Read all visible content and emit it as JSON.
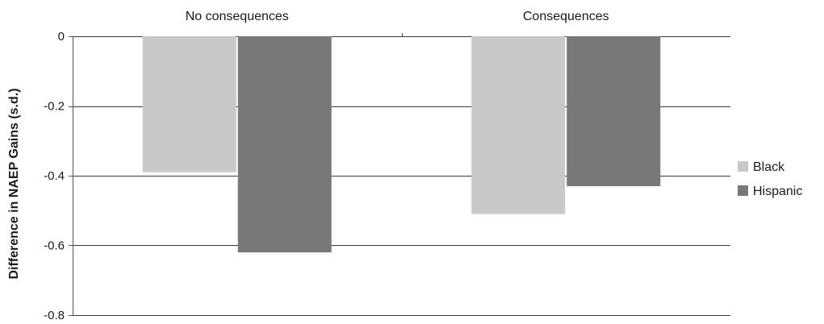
{
  "chart_data": {
    "type": "bar",
    "categories": [
      "No consequences",
      "Consequences"
    ],
    "series": [
      {
        "name": "Black",
        "values": [
          -0.39,
          -0.51
        ],
        "color": "#c8c8c8"
      },
      {
        "name": "Hispanic",
        "values": [
          -0.62,
          -0.43
        ],
        "color": "#78787a"
      }
    ],
    "ylabel": "Difference in NAEP Gains (s.d.)",
    "ylim": [
      -0.8,
      0
    ],
    "yticks": [
      0,
      -0.2,
      -0.4,
      -0.6,
      -0.8
    ],
    "ytick_labels": [
      "0",
      "-0.2",
      "-0.4",
      "-0.6",
      "-0.8"
    ],
    "category_position": "top",
    "grid": true,
    "legend_position": "right"
  }
}
